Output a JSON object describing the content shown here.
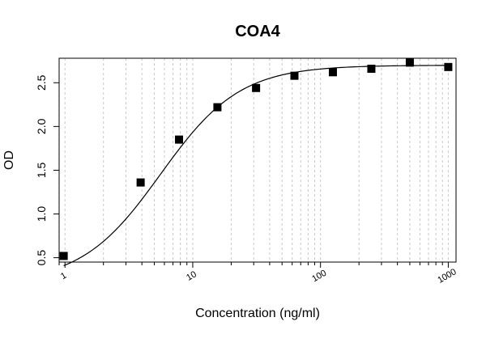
{
  "chart_data": {
    "type": "scatter",
    "title": "COA4",
    "xlabel": "Concentration (ng/ml)",
    "ylabel": "OD",
    "x_scale": "log",
    "xlim": [
      0.9,
      1150
    ],
    "ylim": [
      0.45,
      2.78
    ],
    "x_ticks": [
      1,
      10,
      100,
      1000
    ],
    "x_tick_labels": [
      "1",
      "10",
      "100",
      "1000"
    ],
    "y_ticks": [
      0.5,
      1.0,
      1.5,
      2.0,
      2.5
    ],
    "y_tick_labels": [
      "0.5",
      "1.0",
      "1.5",
      "2.0",
      "2.5"
    ],
    "grid": true,
    "x": [
      0.977,
      3.91,
      7.81,
      15.6,
      31.3,
      62.5,
      125,
      250,
      500,
      1000
    ],
    "y": [
      0.52,
      1.36,
      1.85,
      2.22,
      2.44,
      2.58,
      2.62,
      2.66,
      2.73,
      2.68
    ],
    "fit": {
      "model": "4PL",
      "bottom": 0.21,
      "top": 2.7,
      "ec50": 5.6,
      "hill": 1.4
    }
  }
}
